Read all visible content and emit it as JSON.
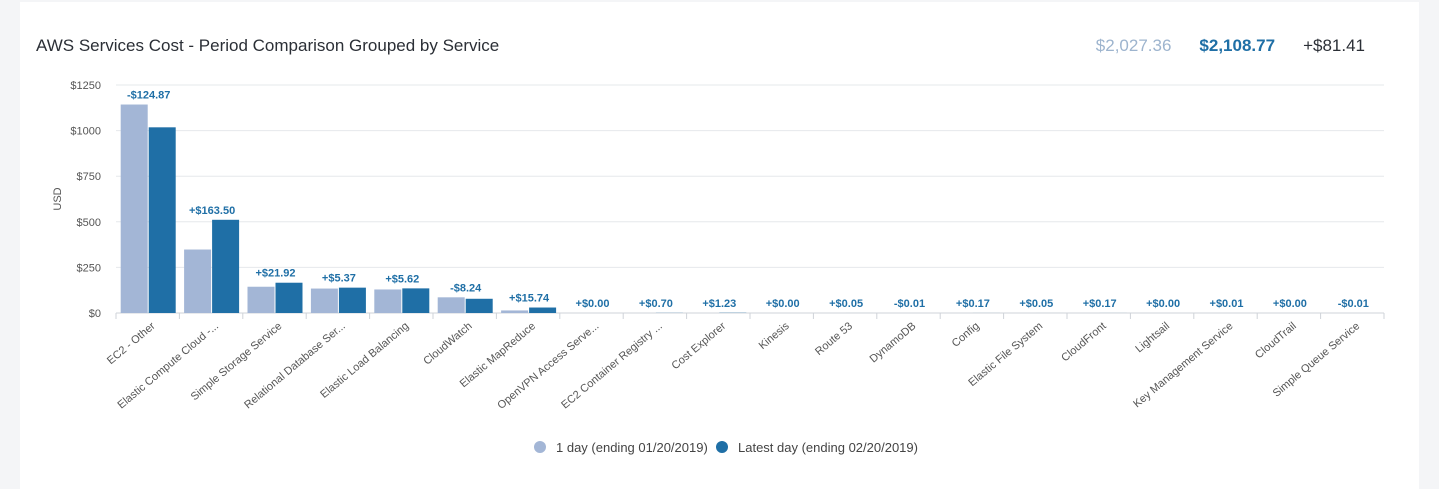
{
  "header": {
    "title": "AWS Services Cost - Period Comparison Grouped by Service",
    "total_previous": "$2,027.36",
    "total_latest": "$2,108.77",
    "total_difference": "+$81.41"
  },
  "colors": {
    "previous": "#a3b6d6",
    "latest": "#1f6fa6",
    "delta_text": "#1f6fa6"
  },
  "chart_data": {
    "type": "bar",
    "ylabel": "USD",
    "ylim": [
      0,
      1250
    ],
    "yticks": [
      "$0",
      "$250",
      "$500",
      "$750",
      "$1000",
      "$1250"
    ],
    "grid": true,
    "legend_position": "bottom",
    "categories": [
      "EC2 - Other",
      "Elastic Compute Cloud -...",
      "Simple Storage Service",
      "Relational Database Ser...",
      "Elastic Load Balancing",
      "CloudWatch",
      "Elastic MapReduce",
      "OpenVPN Access Serve...",
      "EC2 Container Registry ...",
      "Cost Explorer",
      "Kinesis",
      "Route 53",
      "DynamoDB",
      "Config",
      "Elastic File System",
      "CloudFront",
      "Lightsail",
      "Key Management Service",
      "CloudTrail",
      "Simple Queue Service"
    ],
    "series": [
      {
        "name": "1 day (ending 01/20/2019)",
        "values": [
          1143,
          348,
          144,
          134,
          129,
          86,
          14,
          0,
          0,
          0,
          0,
          0,
          0,
          0,
          0,
          0,
          0,
          0,
          0,
          0
        ]
      },
      {
        "name": "Latest day (ending 02/20/2019)",
        "values": [
          1018,
          511,
          166,
          139,
          135,
          78,
          30,
          0,
          0.7,
          1.23,
          0,
          0.05,
          0,
          0.17,
          0.05,
          0.17,
          0,
          0.01,
          0,
          0
        ]
      }
    ],
    "differences": [
      "-$124.87",
      "+$163.50",
      "+$21.92",
      "+$5.37",
      "+$5.62",
      "-$8.24",
      "+$15.74",
      "+$0.00",
      "+$0.70",
      "+$1.23",
      "+$0.00",
      "+$0.05",
      "-$0.01",
      "+$0.17",
      "+$0.05",
      "+$0.17",
      "+$0.00",
      "+$0.01",
      "+$0.00",
      "-$0.01"
    ]
  }
}
